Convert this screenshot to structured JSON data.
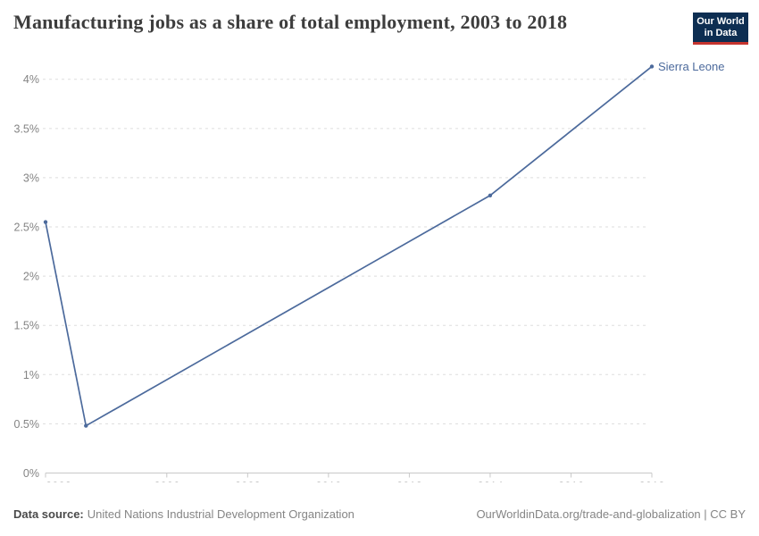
{
  "header": {
    "title": "Manufacturing jobs as a share of total employment, 2003 to 2018",
    "logo": {
      "line1": "Our World",
      "line2": "in Data"
    }
  },
  "chart_data": {
    "type": "line",
    "title": "Manufacturing jobs as a share of total employment, 2003 to 2018",
    "xlabel": "",
    "ylabel": "",
    "xlim": [
      2003,
      2018
    ],
    "ylim": [
      0,
      4.2
    ],
    "x_ticks": [
      2003,
      2006,
      2008,
      2010,
      2012,
      2014,
      2016,
      2018
    ],
    "y_ticks": [
      0,
      0.5,
      1,
      1.5,
      2,
      2.5,
      3,
      3.5,
      4
    ],
    "y_tick_suffix": "%",
    "grid": "horizontal-dashed",
    "legend_position": "end-of-line-label",
    "series": [
      {
        "name": "Sierra Leone",
        "color": "#4C6A9C",
        "points": [
          {
            "x": 2003,
            "y": 2.55
          },
          {
            "x": 2004,
            "y": 0.48
          },
          {
            "x": 2014,
            "y": 2.82
          },
          {
            "x": 2018,
            "y": 4.13
          }
        ]
      }
    ]
  },
  "footer": {
    "source_label": "Data source:",
    "source_text": "United Nations Industrial Development Organization",
    "link_text": "OurWorldinData.org/trade-and-globalization | CC BY"
  },
  "colors": {
    "series": "#4C6A9C",
    "title": "#3d3d3d",
    "grid": "#dddddd",
    "axis": "#c8c8c8",
    "axis_text": "#848484",
    "footer_text": "#858585",
    "footer_label": "#4a4a4a",
    "logo_bg": "#0d2e52",
    "logo_accent": "#c5342f"
  }
}
